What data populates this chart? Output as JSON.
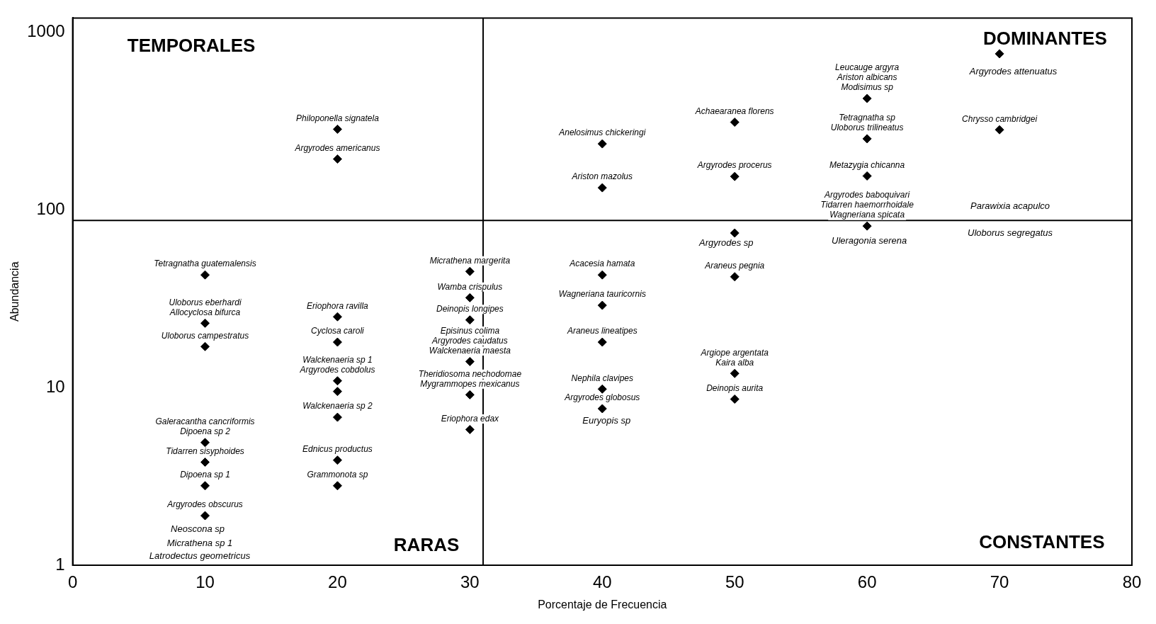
{
  "chart_data": {
    "type": "scatter",
    "xlabel": "Porcentaje de Frecuencia",
    "ylabel": "Abundancia",
    "xlim": [
      0,
      80
    ],
    "xticks": [
      0,
      10,
      20,
      30,
      40,
      50,
      60,
      70,
      80
    ],
    "ylim": [
      1,
      1200
    ],
    "yticks": [
      1,
      10,
      100,
      1000
    ],
    "log": "y",
    "grid": false,
    "legend": false,
    "marker": "diamond",
    "series": [
      {
        "color": "#000000",
        "x": [
          20,
          20,
          40,
          40,
          50,
          50,
          60,
          60,
          60,
          60,
          70,
          70,
          50,
          30,
          30,
          30,
          30,
          30,
          30,
          40,
          40,
          40,
          40,
          40,
          50,
          50,
          50,
          10,
          10,
          10,
          20,
          20,
          20,
          20,
          20,
          10,
          10,
          10,
          10,
          20,
          20
        ],
        "values": [
          284,
          193,
          235,
          133,
          311,
          154,
          423,
          251,
          155,
          81,
          755,
          282,
          74,
          45,
          32,
          24,
          14,
          9.1,
          5.8,
          43,
          29,
          18,
          9.8,
          7.6,
          42,
          12,
          8.6,
          43,
          23,
          17,
          25,
          18,
          10.9,
          9.5,
          6.8,
          4.9,
          3.8,
          2.8,
          1.9,
          3.9,
          2.8
        ],
        "value_labels": [
          "Philoponella signatela",
          "Argyrodes americanus",
          "Anelosimus chickeringi",
          "Ariston mazolus",
          "Achaearanea florens",
          "Argyrodes procerus",
          "Leucauge argyra\nAriston albicans\nModisimus sp",
          "Tetragnatha sp\nUloborus trilineatus",
          "Metazygia chicanna",
          "Argyrodes baboquivari\nTidarren haemorrhoidale\nWagneriana spicata",
          null,
          "Chrysso cambridgei",
          null,
          "Micrathena margerita",
          "Wamba crispulus",
          "Deinopis longipes",
          "Episinus colima\nArgyrodes caudatus\nWalckenaeria maesta",
          "Theridiosoma nechodomae\nMygrammopes mexicanus",
          "Eriophora edax",
          "Acacesia hamata",
          "Wagneriana tauricornis",
          "Araneus lineatipes",
          "Nephila clavipes",
          "Argyrodes globosus",
          "Araneus pegnia",
          "Argiope argentata\nKaira alba",
          "Deinopis aurita",
          "Tetragnatha guatemalensis",
          "Uloborus eberhardi\nAllocyclosa bifurca",
          "Uloborus campestratus",
          "Eriophora ravilla",
          "Cyclosa caroli",
          "Walckenaeria sp 1\nArgyrodes cobdolus",
          null,
          "Walckenaeria sp 2",
          "Galeracantha cancriformis\nDipoena sp 2",
          "Tidarren sisyphoides",
          "Dipoena sp 1",
          "Argyrodes obscurus",
          "Ednicus productus",
          "Grammonota sp"
        ]
      }
    ],
    "ref_lines": [
      {
        "axis": "x",
        "value": 31,
        "color": "#000000"
      },
      {
        "axis": "y",
        "value": 87,
        "color": "#000000"
      }
    ],
    "annotations": [
      "TEMPORALES",
      "DOMINANTES",
      "RARAS",
      "CONSTANTES",
      "Argyrodes attenuatus",
      "Parawixia acapulco",
      "Uloborus segregatus",
      "Argyrodes sp",
      "Uleragonia serena",
      "Euryopis sp",
      "Neoscona sp",
      "Micrathena sp 1",
      "Latrodectus geometricus"
    ]
  }
}
